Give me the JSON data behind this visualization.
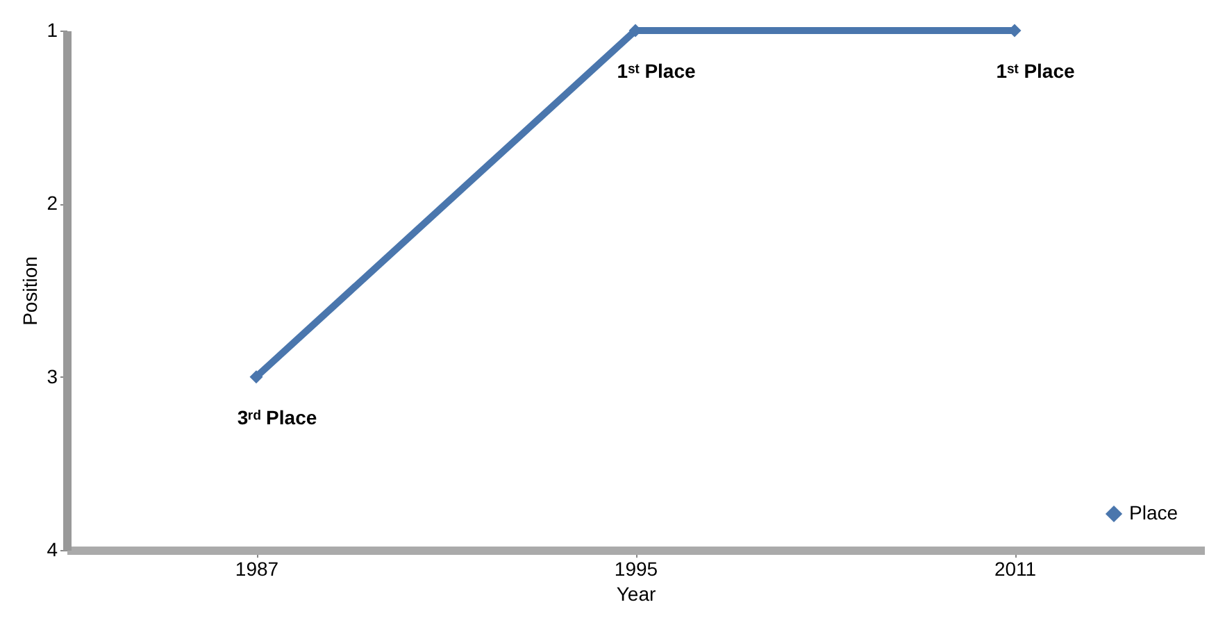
{
  "chart_data": {
    "type": "line",
    "xlabel": "Year",
    "ylabel": "Position",
    "categories": [
      "1987",
      "1995",
      "2011"
    ],
    "series": [
      {
        "name": "Place",
        "color": "#4a76ad",
        "values": [
          3,
          1,
          1
        ]
      }
    ],
    "ylim": [
      4,
      1
    ],
    "yticks": [
      1,
      2,
      3,
      4
    ],
    "grid": false,
    "legend": "bottom right",
    "marker": "diamond",
    "line_style": "solid",
    "annotations": [
      {
        "text": "3ʳᵈ Place",
        "x": "1987",
        "y": 3
      },
      {
        "text": "1ˢᵗ Place",
        "x": "1995",
        "y": 1
      },
      {
        "text": "1ˢᵗ Place",
        "x": "2011",
        "y": 1
      }
    ]
  }
}
